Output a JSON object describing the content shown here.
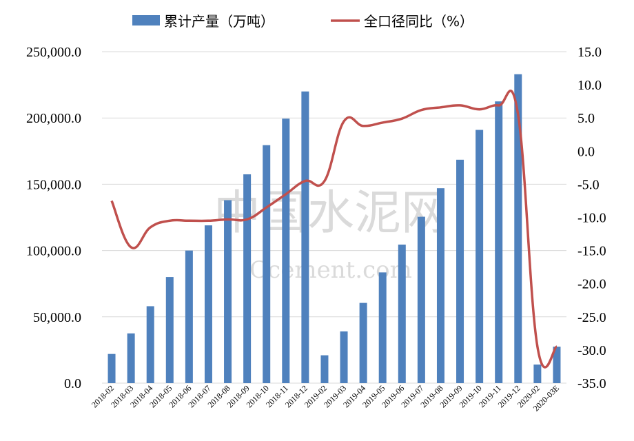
{
  "chart_data": {
    "type": "bar",
    "categories": [
      "2018-02",
      "2018-03",
      "2018-04",
      "2018-05",
      "2018-06",
      "2018-07",
      "2018-08",
      "2018-09",
      "2018-10",
      "2018-11",
      "2018-12",
      "2019-02",
      "2019-03",
      "2019-04",
      "2019-05",
      "2019-06",
      "2019-07",
      "2019-08",
      "2019-09",
      "2019-10",
      "2019-11",
      "2019-12",
      "2020-02",
      "2020-03E"
    ],
    "series": [
      {
        "name": "累计产量（万吨）",
        "type": "bar",
        "axis": "left",
        "color": "#4f81bd",
        "values": [
          22000,
          37500,
          58000,
          80000,
          100000,
          119000,
          138000,
          157500,
          179500,
          199500,
          220000,
          21000,
          39000,
          60500,
          83500,
          104500,
          125500,
          147000,
          168500,
          191000,
          212500,
          233000,
          14000,
          27500
        ]
      },
      {
        "name": "全口径同比（%）",
        "type": "line",
        "axis": "right",
        "color": "#c0504d",
        "values": [
          -7.5,
          -14.5,
          -11.5,
          -10.5,
          -10.5,
          -10.5,
          -10.3,
          -10.3,
          -8.5,
          -6.5,
          -4.5,
          -4.5,
          4.5,
          3.8,
          4.3,
          4.9,
          6.2,
          6.6,
          6.9,
          6.3,
          6.9,
          5.5,
          -29.5,
          -29.5
        ]
      }
    ],
    "y_left": {
      "range": [
        0,
        250000
      ],
      "ticks": [
        "0.0",
        "50,000.0",
        "100,000.0",
        "150,000.0",
        "200,000.0",
        "250,000.0"
      ]
    },
    "y_right": {
      "range": [
        -35,
        15
      ],
      "ticks": [
        "-35.0",
        "-30.0",
        "-25.0",
        "-20.0",
        "-15.0",
        "-10.0",
        "-5.0",
        "0.0",
        "5.0",
        "10.0",
        "15.0"
      ]
    },
    "grid": true,
    "legend": "top-center",
    "watermark": {
      "cn": "中国水泥网",
      "en": "Ccement.com"
    }
  }
}
